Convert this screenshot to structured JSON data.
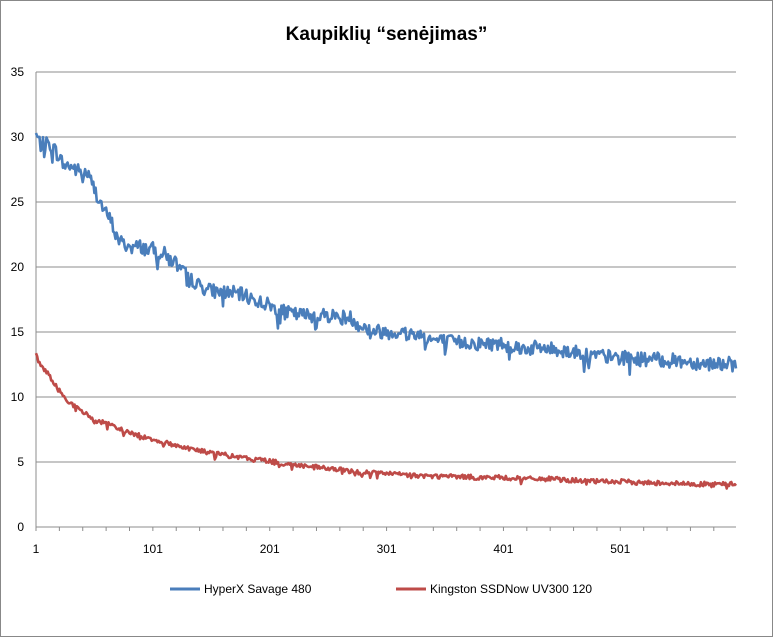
{
  "chart_data": {
    "type": "line",
    "title": "Kaupiklių “senėjimas”",
    "xlabel": "",
    "ylabel": "",
    "xlim": [
      1,
      600
    ],
    "ylim": [
      0,
      35
    ],
    "y_ticks": [
      "0",
      "5",
      "10",
      "15",
      "20",
      "25",
      "30",
      "35"
    ],
    "x_ticks": [
      "1",
      "101",
      "201",
      "301",
      "401",
      "501"
    ],
    "grid": "horizontal",
    "legend_position": "bottom",
    "series": [
      {
        "name": "HyperX Savage 480",
        "color": "#4a7ebb",
        "anchors": [
          [
            1,
            30.2
          ],
          [
            5,
            29.4
          ],
          [
            10,
            29.5
          ],
          [
            15,
            29.3
          ],
          [
            20,
            28.6
          ],
          [
            25,
            27.8
          ],
          [
            30,
            27.8
          ],
          [
            35,
            27.5
          ],
          [
            40,
            27.3
          ],
          [
            45,
            27.2
          ],
          [
            50,
            26.2
          ],
          [
            55,
            25.2
          ],
          [
            60,
            24.2
          ],
          [
            65,
            23.6
          ],
          [
            70,
            22.3
          ],
          [
            75,
            21.8
          ],
          [
            80,
            21.6
          ],
          [
            85,
            21.5
          ],
          [
            90,
            21.6
          ],
          [
            95,
            21.4
          ],
          [
            100,
            21.4
          ],
          [
            105,
            21.2
          ],
          [
            110,
            21.1
          ],
          [
            115,
            20.6
          ],
          [
            120,
            20.4
          ],
          [
            125,
            19.7
          ],
          [
            130,
            19.4
          ],
          [
            135,
            19.0
          ],
          [
            140,
            18.6
          ],
          [
            145,
            18.4
          ],
          [
            150,
            18.2
          ],
          [
            160,
            18.1
          ],
          [
            170,
            18.0
          ],
          [
            180,
            17.8
          ],
          [
            190,
            17.4
          ],
          [
            200,
            17.1
          ],
          [
            210,
            16.6
          ],
          [
            220,
            16.4
          ],
          [
            230,
            16.3
          ],
          [
            240,
            16.3
          ],
          [
            250,
            16.3
          ],
          [
            260,
            16.2
          ],
          [
            270,
            16.1
          ],
          [
            280,
            15.4
          ],
          [
            290,
            15.1
          ],
          [
            300,
            15.0
          ],
          [
            310,
            15.0
          ],
          [
            320,
            14.9
          ],
          [
            330,
            14.8
          ],
          [
            340,
            14.4
          ],
          [
            350,
            14.3
          ],
          [
            360,
            14.2
          ],
          [
            370,
            14.2
          ],
          [
            380,
            14.1
          ],
          [
            390,
            14.1
          ],
          [
            400,
            14.1
          ],
          [
            410,
            13.9
          ],
          [
            420,
            13.7
          ],
          [
            430,
            13.8
          ],
          [
            440,
            13.7
          ],
          [
            450,
            13.6
          ],
          [
            460,
            13.5
          ],
          [
            470,
            13.3
          ],
          [
            480,
            13.2
          ],
          [
            490,
            13.1
          ],
          [
            500,
            13.0
          ],
          [
            510,
            13.0
          ],
          [
            520,
            12.9
          ],
          [
            530,
            12.9
          ],
          [
            540,
            12.8
          ],
          [
            550,
            12.8
          ],
          [
            560,
            12.7
          ],
          [
            570,
            12.6
          ],
          [
            580,
            12.6
          ],
          [
            590,
            12.6
          ],
          [
            600,
            12.5
          ]
        ],
        "noise": 0.55
      },
      {
        "name": "Kingston SSDNow  UV300 120",
        "color": "#be4b48",
        "anchors": [
          [
            1,
            13.2
          ],
          [
            5,
            12.4
          ],
          [
            10,
            12.0
          ],
          [
            15,
            11.2
          ],
          [
            20,
            10.6
          ],
          [
            25,
            10.0
          ],
          [
            30,
            9.6
          ],
          [
            35,
            9.2
          ],
          [
            40,
            8.9
          ],
          [
            45,
            8.6
          ],
          [
            50,
            8.3
          ],
          [
            60,
            8.0
          ],
          [
            70,
            7.6
          ],
          [
            80,
            7.3
          ],
          [
            90,
            7.0
          ],
          [
            100,
            6.8
          ],
          [
            110,
            6.5
          ],
          [
            120,
            6.3
          ],
          [
            130,
            6.1
          ],
          [
            140,
            5.9
          ],
          [
            150,
            5.7
          ],
          [
            160,
            5.6
          ],
          [
            170,
            5.4
          ],
          [
            180,
            5.3
          ],
          [
            190,
            5.2
          ],
          [
            200,
            5.1
          ],
          [
            210,
            4.9
          ],
          [
            220,
            4.8
          ],
          [
            230,
            4.7
          ],
          [
            240,
            4.6
          ],
          [
            250,
            4.5
          ],
          [
            260,
            4.4
          ],
          [
            270,
            4.3
          ],
          [
            280,
            4.2
          ],
          [
            290,
            4.2
          ],
          [
            300,
            4.1
          ],
          [
            320,
            4.0
          ],
          [
            340,
            3.9
          ],
          [
            360,
            3.9
          ],
          [
            380,
            3.8
          ],
          [
            400,
            3.8
          ],
          [
            420,
            3.7
          ],
          [
            440,
            3.7
          ],
          [
            460,
            3.6
          ],
          [
            480,
            3.5
          ],
          [
            500,
            3.5
          ],
          [
            520,
            3.4
          ],
          [
            540,
            3.4
          ],
          [
            560,
            3.3
          ],
          [
            580,
            3.3
          ],
          [
            600,
            3.3
          ]
        ],
        "noise": 0.18
      }
    ]
  }
}
